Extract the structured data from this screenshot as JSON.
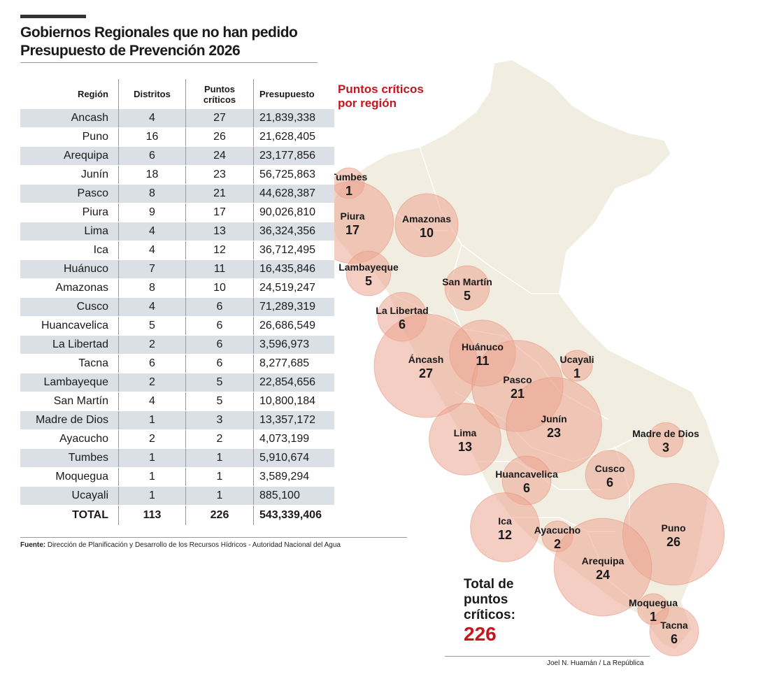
{
  "title_line1": "Gobiernos Regionales que no han pedido",
  "title_line2": "Presupuesto de Prevención 2026",
  "table": {
    "headers": [
      "Región",
      "Distritos",
      "Puntos\ncríticos",
      "Presupuesto"
    ],
    "rows": [
      [
        "Ancash",
        "4",
        "27",
        "21,839,338"
      ],
      [
        "Puno",
        "16",
        "26",
        "21,628,405"
      ],
      [
        "Arequipa",
        "6",
        "24",
        "23,177,856"
      ],
      [
        "Junín",
        "18",
        "23",
        "56,725,863"
      ],
      [
        "Pasco",
        "8",
        "21",
        "44,628,387"
      ],
      [
        "Piura",
        "9",
        "17",
        "90,026,810"
      ],
      [
        "Lima",
        "4",
        "13",
        "36,324,356"
      ],
      [
        "Ica",
        "4",
        "12",
        "36,712,495"
      ],
      [
        "Huánuco",
        "7",
        "11",
        "16,435,846"
      ],
      [
        "Amazonas",
        "8",
        "10",
        "24,519,247"
      ],
      [
        "Cusco",
        "4",
        "6",
        "71,289,319"
      ],
      [
        "Huancavelica",
        "5",
        "6",
        "26,686,549"
      ],
      [
        "La Libertad",
        "2",
        "6",
        "3,596,973"
      ],
      [
        "Tacna",
        "6",
        "6",
        "8,277,685"
      ],
      [
        "Lambayeque",
        "2",
        "5",
        "22,854,656"
      ],
      [
        "San Martín",
        "4",
        "5",
        "10,800,184"
      ],
      [
        "Madre de Dios",
        "1",
        "3",
        "13,357,172"
      ],
      [
        "Ayacucho",
        "2",
        "2",
        "4,073,199"
      ],
      [
        "Tumbes",
        "1",
        "1",
        "5,910,674"
      ],
      [
        "Moquegua",
        "1",
        "1",
        "3,589,294"
      ],
      [
        "Ucayali",
        "1",
        "1",
        "885,100"
      ]
    ],
    "total": [
      "TOTAL",
      "113",
      "226",
      "543,339,406"
    ]
  },
  "source_label": "Fuente:",
  "source_text": "Dirección de Planificación y Desarrollo de los Recursos Hídricos - Autoridad Nacional del Agua",
  "map_title_line1": "Puntos críticos",
  "map_title_line2": "por región",
  "total_line1": "Total de",
  "total_line2": "puntos",
  "total_line3": "críticos:",
  "total_value": "226",
  "credit": "Joel N. Huamán / La República",
  "colors": {
    "accent_red": "#c4161c",
    "bubble_fill": "#eca591",
    "map_fill": "#f1ede1",
    "table_stripe": "#dbe0e6"
  },
  "chart_data": {
    "type": "bubble-map",
    "value_label": "Puntos críticos",
    "regions": [
      {
        "name": "Tumbes",
        "value": 1
      },
      {
        "name": "Piura",
        "value": 17
      },
      {
        "name": "Amazonas",
        "value": 10
      },
      {
        "name": "Lambayeque",
        "value": 5
      },
      {
        "name": "San Martín",
        "value": 5
      },
      {
        "name": "La Libertad",
        "value": 6
      },
      {
        "name": "Huánuco",
        "value": 11
      },
      {
        "name": "Ucayali",
        "value": 1
      },
      {
        "name": "Áncash",
        "value": 27
      },
      {
        "name": "Pasco",
        "value": 21
      },
      {
        "name": "Junín",
        "value": 23
      },
      {
        "name": "Lima",
        "value": 13
      },
      {
        "name": "Madre de Dios",
        "value": 3
      },
      {
        "name": "Cusco",
        "value": 6
      },
      {
        "name": "Huancavelica",
        "value": 6
      },
      {
        "name": "Ica",
        "value": 12
      },
      {
        "name": "Ayacucho",
        "value": 2
      },
      {
        "name": "Puno",
        "value": 26
      },
      {
        "name": "Arequipa",
        "value": 24
      },
      {
        "name": "Moquegua",
        "value": 1
      },
      {
        "name": "Tacna",
        "value": 6
      }
    ]
  }
}
